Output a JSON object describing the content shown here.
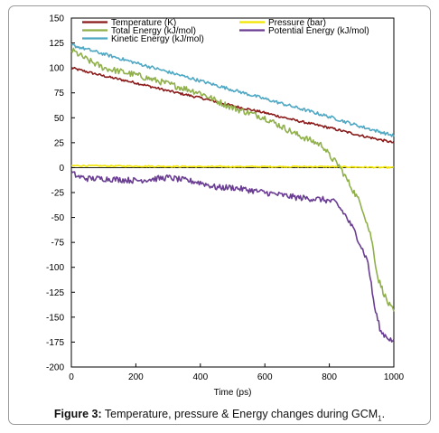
{
  "chart_data": {
    "type": "line",
    "xlabel": "Time (ps)",
    "ylabel": "",
    "xlim": [
      0,
      1000
    ],
    "ylim": [
      -200,
      150
    ],
    "xticks": [
      0,
      200,
      400,
      600,
      800,
      1000
    ],
    "yticks": [
      150,
      125,
      100,
      75,
      50,
      25,
      0,
      -25,
      -50,
      -75,
      -100,
      -125,
      -150,
      -175,
      -200
    ],
    "grid": false,
    "legend_position": "top",
    "series": [
      {
        "name": "Temperature (K)",
        "color": "#8b1a1a",
        "x": [
          0,
          100,
          200,
          300,
          400,
          500,
          600,
          700,
          800,
          900,
          1000
        ],
        "y": [
          100,
          92,
          85,
          77,
          70,
          62,
          55,
          47,
          40,
          32,
          25
        ]
      },
      {
        "name": "Pressure (bar)",
        "color": "#f2e500",
        "x": [
          0,
          200,
          400,
          600,
          800,
          1000
        ],
        "y": [
          2,
          1.5,
          1,
          1,
          1,
          0
        ]
      },
      {
        "name": "Total Energy (kJ/mol)",
        "color": "#8fb04a",
        "x": [
          0,
          50,
          100,
          200,
          300,
          400,
          450,
          500,
          600,
          700,
          780,
          800,
          830,
          860,
          900,
          930,
          950,
          980,
          1000
        ],
        "y": [
          118,
          108,
          100,
          93,
          84,
          75,
          67,
          60,
          50,
          33,
          22,
          12,
          2,
          -15,
          -38,
          -70,
          -110,
          -135,
          -145
        ]
      },
      {
        "name": "Kinetic Energy (kJ/mol)",
        "color": "#4fa8c4",
        "x": [
          0,
          100,
          200,
          300,
          400,
          500,
          600,
          700,
          800,
          900,
          1000
        ],
        "y": [
          123,
          114,
          105,
          96,
          87,
          78,
          69,
          60,
          51,
          41,
          32
        ]
      },
      {
        "name": "Potential Energy (kJ/mol)",
        "color": "#6a3d93",
        "x": [
          0,
          20,
          50,
          100,
          200,
          300,
          400,
          450,
          500,
          600,
          700,
          780,
          820,
          850,
          880,
          900,
          920,
          940,
          960,
          980,
          1000
        ],
        "y": [
          -5,
          -9,
          -11,
          -11,
          -13,
          -10,
          -15,
          -20,
          -20,
          -25,
          -30,
          -32,
          -35,
          -48,
          -65,
          -80,
          -95,
          -140,
          -165,
          -170,
          -175
        ]
      }
    ]
  },
  "caption": {
    "label": "Figure 3:",
    "text": " Temperature, pressure & Energy changes during GCM",
    "subscript": "1",
    "end": "."
  }
}
